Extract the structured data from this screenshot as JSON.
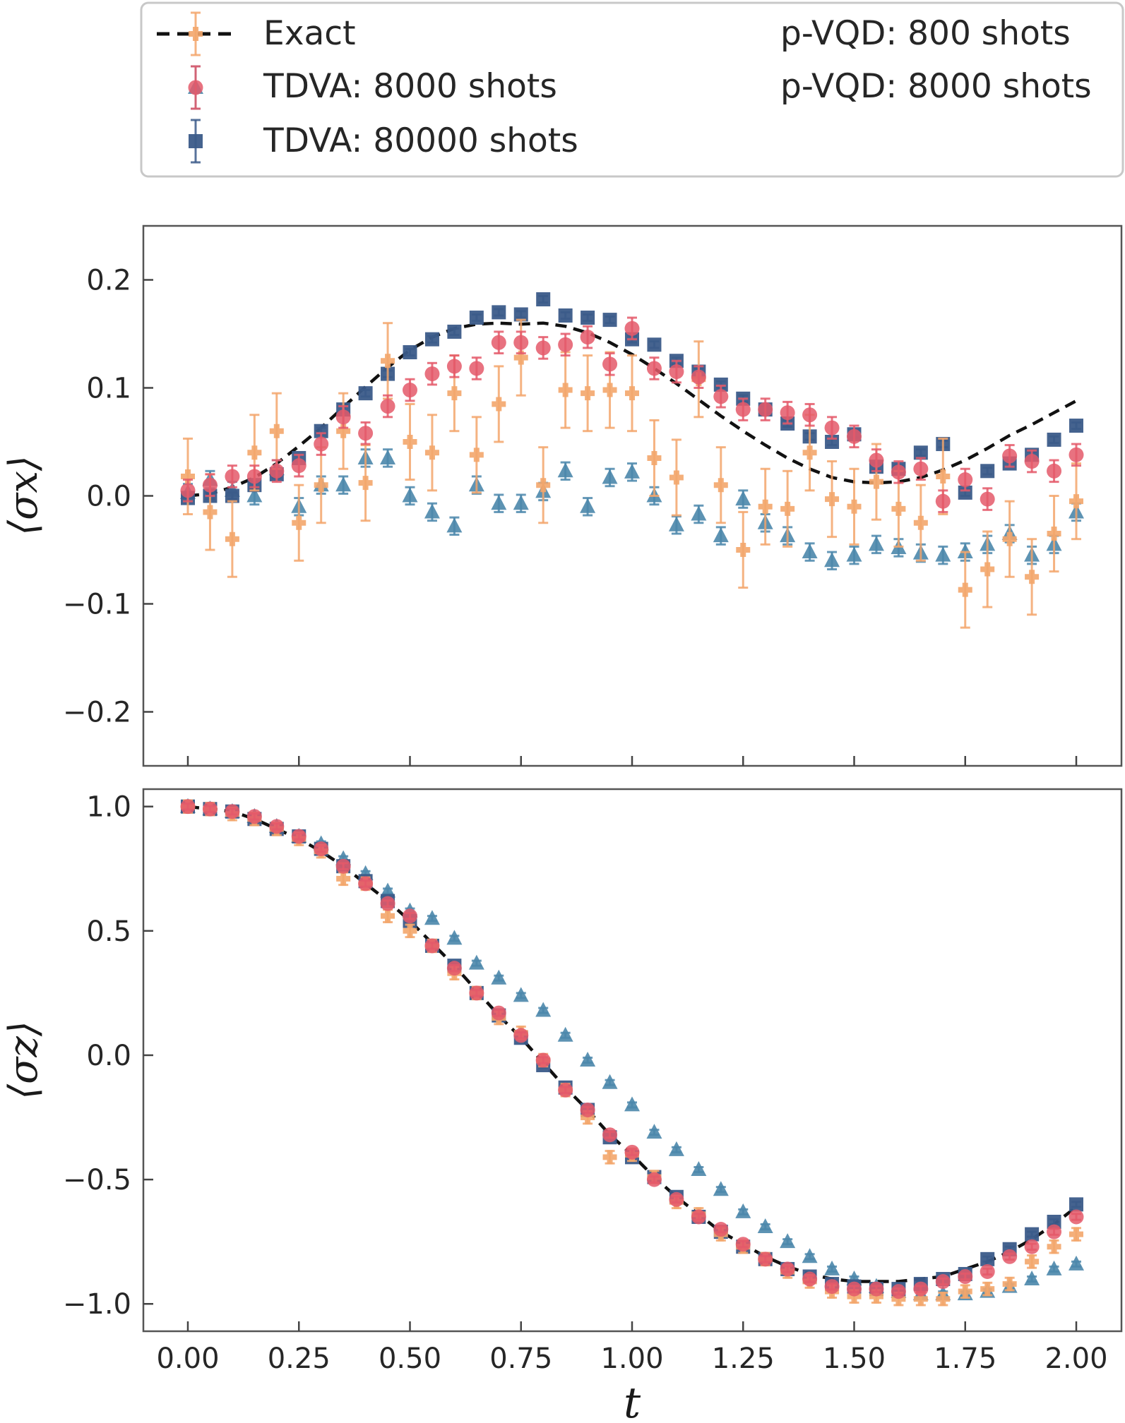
{
  "colors": {
    "exact": "#111111",
    "tdva_8000": "#4b87ab",
    "tdva_80000": "#3b5b89",
    "pvqd_800": "#f3a66c",
    "pvqd_8000": "#e4596a",
    "frame": "#555555",
    "legend_border": "#c8c8c8"
  },
  "chart_data": [
    {
      "type": "scatter",
      "panel": "top",
      "ylabel": "⟨σx⟩",
      "xlim": [
        -0.1,
        2.09
      ],
      "ylim": [
        -0.25,
        0.25
      ],
      "xticks": [
        0.0,
        0.25,
        0.5,
        0.75,
        1.0,
        1.25,
        1.5,
        1.75,
        2.0
      ],
      "yticks": [
        -0.2,
        -0.1,
        0.0,
        0.1,
        0.2
      ],
      "ytick_labels": [
        "−0.2",
        "−0.1",
        "0.0",
        "0.1",
        "0.2"
      ],
      "grid": false,
      "t": [
        0.0,
        0.05,
        0.1,
        0.15,
        0.2,
        0.25,
        0.3,
        0.35,
        0.4,
        0.45,
        0.5,
        0.55,
        0.6,
        0.65,
        0.7,
        0.75,
        0.8,
        0.85,
        0.9,
        0.95,
        1.0,
        1.05,
        1.1,
        1.15,
        1.2,
        1.25,
        1.3,
        1.35,
        1.4,
        1.45,
        1.5,
        1.55,
        1.6,
        1.65,
        1.7,
        1.75,
        1.8,
        1.85,
        1.9,
        1.95,
        2.0
      ],
      "series": [
        {
          "name": "Exact",
          "kind": "line",
          "key": "exact",
          "values": [
            0.0,
            0.002,
            0.008,
            0.017,
            0.03,
            0.046,
            0.063,
            0.082,
            0.101,
            0.119,
            0.135,
            0.147,
            0.155,
            0.159,
            0.16,
            0.159,
            0.16,
            0.157,
            0.151,
            0.142,
            0.131,
            0.118,
            0.104,
            0.089,
            0.074,
            0.06,
            0.047,
            0.035,
            0.025,
            0.017,
            0.013,
            0.012,
            0.013,
            0.017,
            0.024,
            0.033,
            0.044,
            0.056,
            0.066,
            0.077,
            0.088
          ]
        },
        {
          "name": "TDVA: 8000 shots",
          "kind": "marker",
          "marker": "triangle",
          "key": "tdva_8000",
          "values": [
            0.003,
            0.015,
            0.005,
            0.0,
            0.025,
            -0.01,
            0.01,
            0.01,
            0.035,
            0.035,
            0.0,
            -0.015,
            -0.028,
            0.01,
            -0.007,
            -0.007,
            0.004,
            0.023,
            -0.01,
            0.017,
            0.022,
            0.0,
            -0.027,
            -0.017,
            -0.037,
            -0.003,
            -0.025,
            -0.037,
            -0.052,
            -0.06,
            -0.055,
            -0.045,
            -0.048,
            -0.053,
            -0.055,
            -0.052,
            -0.045,
            -0.035,
            -0.055,
            -0.045,
            -0.015
          ],
          "err": 0.008
        },
        {
          "name": "TDVA: 80000 shots",
          "kind": "marker",
          "marker": "square",
          "key": "tdva_80000",
          "values": [
            -0.002,
            0.0,
            0.0,
            0.01,
            0.02,
            0.035,
            0.06,
            0.08,
            0.095,
            0.113,
            0.133,
            0.145,
            0.152,
            0.165,
            0.17,
            0.168,
            0.182,
            0.167,
            0.165,
            0.163,
            0.145,
            0.14,
            0.125,
            0.115,
            0.103,
            0.09,
            0.08,
            0.067,
            0.055,
            0.05,
            0.057,
            0.027,
            0.025,
            0.04,
            0.048,
            0.003,
            0.023,
            0.03,
            0.038,
            0.052,
            0.065
          ],
          "err": 0.003
        },
        {
          "name": "p-VQD: 800 shots",
          "kind": "marker",
          "marker": "plus",
          "key": "pvqd_800",
          "values": [
            0.018,
            -0.015,
            -0.04,
            0.04,
            0.06,
            -0.025,
            0.01,
            0.06,
            0.012,
            0.125,
            0.05,
            0.04,
            0.095,
            0.038,
            0.085,
            0.128,
            0.01,
            0.098,
            0.095,
            0.098,
            0.095,
            0.035,
            0.017,
            0.108,
            0.01,
            -0.05,
            -0.01,
            -0.012,
            0.04,
            -0.003,
            -0.01,
            0.013,
            -0.012,
            -0.025,
            0.018,
            -0.087,
            -0.068,
            -0.04,
            -0.075,
            -0.035,
            -0.005
          ],
          "err": 0.035
        },
        {
          "name": "p-VQD: 8000 shots",
          "kind": "marker",
          "marker": "circle",
          "key": "pvqd_8000",
          "values": [
            0.005,
            0.01,
            0.018,
            0.018,
            0.023,
            0.028,
            0.048,
            0.073,
            0.058,
            0.083,
            0.098,
            0.113,
            0.12,
            0.118,
            0.142,
            0.142,
            0.137,
            0.14,
            0.147,
            0.122,
            0.155,
            0.118,
            0.115,
            0.11,
            0.092,
            0.08,
            0.08,
            0.077,
            0.075,
            0.063,
            0.055,
            0.033,
            0.022,
            0.025,
            -0.005,
            0.015,
            -0.003,
            0.037,
            0.032,
            0.023,
            0.038
          ],
          "err": 0.01
        }
      ]
    },
    {
      "type": "scatter",
      "panel": "bottom",
      "xlabel": "t",
      "ylabel": "⟨σz⟩",
      "xlim": [
        -0.1,
        2.09
      ],
      "ylim": [
        -1.11,
        1.07
      ],
      "xticks": [
        0.0,
        0.25,
        0.5,
        0.75,
        1.0,
        1.25,
        1.5,
        1.75,
        2.0
      ],
      "xtick_labels": [
        "0.00",
        "0.25",
        "0.50",
        "0.75",
        "1.00",
        "1.25",
        "1.50",
        "1.75",
        "2.00"
      ],
      "yticks": [
        -1.0,
        -0.5,
        0.0,
        0.5,
        1.0
      ],
      "ytick_labels": [
        "−1.0",
        "−0.5",
        "0.0",
        "0.5",
        "1.0"
      ],
      "grid": false,
      "t": [
        0.0,
        0.05,
        0.1,
        0.15,
        0.2,
        0.25,
        0.3,
        0.35,
        0.4,
        0.45,
        0.5,
        0.55,
        0.6,
        0.65,
        0.7,
        0.75,
        0.8,
        0.85,
        0.9,
        0.95,
        1.0,
        1.05,
        1.1,
        1.15,
        1.2,
        1.25,
        1.3,
        1.35,
        1.4,
        1.45,
        1.5,
        1.55,
        1.6,
        1.65,
        1.7,
        1.75,
        1.8,
        1.85,
        1.9,
        1.95,
        2.0
      ],
      "series": [
        {
          "name": "Exact",
          "kind": "line",
          "key": "exact",
          "values": [
            1.0,
            0.99,
            0.98,
            0.95,
            0.91,
            0.87,
            0.82,
            0.76,
            0.69,
            0.62,
            0.54,
            0.45,
            0.36,
            0.26,
            0.16,
            0.07,
            -0.03,
            -0.13,
            -0.22,
            -0.32,
            -0.4,
            -0.49,
            -0.57,
            -0.64,
            -0.71,
            -0.76,
            -0.81,
            -0.85,
            -0.88,
            -0.9,
            -0.91,
            -0.91,
            -0.91,
            -0.9,
            -0.89,
            -0.86,
            -0.83,
            -0.79,
            -0.74,
            -0.68,
            -0.61
          ]
        },
        {
          "name": "TDVA: 8000 shots",
          "kind": "marker",
          "marker": "triangle",
          "key": "tdva_8000",
          "values": [
            1.0,
            0.99,
            0.98,
            0.96,
            0.92,
            0.88,
            0.85,
            0.79,
            0.73,
            0.66,
            0.58,
            0.55,
            0.47,
            0.37,
            0.31,
            0.24,
            0.18,
            0.08,
            -0.02,
            -0.11,
            -0.2,
            -0.31,
            -0.38,
            -0.46,
            -0.54,
            -0.63,
            -0.69,
            -0.75,
            -0.81,
            -0.86,
            -0.9,
            -0.93,
            -0.95,
            -0.96,
            -0.96,
            -0.96,
            -0.95,
            -0.93,
            -0.9,
            -0.86,
            -0.84
          ],
          "err": 0.01
        },
        {
          "name": "TDVA: 80000 shots",
          "kind": "marker",
          "marker": "square",
          "key": "tdva_80000",
          "values": [
            1.0,
            0.99,
            0.98,
            0.95,
            0.91,
            0.88,
            0.83,
            0.76,
            0.7,
            0.62,
            0.54,
            0.44,
            0.36,
            0.25,
            0.16,
            0.07,
            -0.04,
            -0.13,
            -0.22,
            -0.33,
            -0.41,
            -0.49,
            -0.57,
            -0.65,
            -0.71,
            -0.77,
            -0.82,
            -0.86,
            -0.89,
            -0.92,
            -0.93,
            -0.94,
            -0.94,
            -0.92,
            -0.9,
            -0.88,
            -0.82,
            -0.78,
            -0.72,
            -0.67,
            -0.6
          ],
          "err": 0.01
        },
        {
          "name": "p-VQD: 800 shots",
          "kind": "marker",
          "marker": "plus",
          "key": "pvqd_800",
          "values": [
            1.0,
            0.99,
            0.97,
            0.95,
            0.91,
            0.87,
            0.82,
            0.71,
            0.69,
            0.56,
            0.5,
            0.44,
            0.33,
            0.25,
            0.15,
            0.09,
            -0.02,
            -0.14,
            -0.25,
            -0.41,
            -0.4,
            -0.49,
            -0.59,
            -0.64,
            -0.72,
            -0.77,
            -0.82,
            -0.87,
            -0.91,
            -0.95,
            -0.97,
            -0.97,
            -0.98,
            -0.98,
            -0.98,
            -0.95,
            -0.94,
            -0.92,
            -0.83,
            -0.77,
            -0.72
          ],
          "err": 0.025
        },
        {
          "name": "p-VQD: 8000 shots",
          "kind": "marker",
          "marker": "circle",
          "key": "pvqd_8000",
          "values": [
            1.0,
            0.99,
            0.98,
            0.96,
            0.92,
            0.88,
            0.83,
            0.76,
            0.69,
            0.61,
            0.56,
            0.44,
            0.35,
            0.25,
            0.17,
            0.08,
            -0.02,
            -0.14,
            -0.22,
            -0.32,
            -0.39,
            -0.5,
            -0.58,
            -0.65,
            -0.7,
            -0.76,
            -0.82,
            -0.86,
            -0.9,
            -0.93,
            -0.94,
            -0.94,
            -0.95,
            -0.94,
            -0.91,
            -0.89,
            -0.87,
            -0.81,
            -0.77,
            -0.71,
            -0.65
          ],
          "err": 0.012
        }
      ]
    }
  ],
  "legend": {
    "placement": "top",
    "entries": [
      {
        "key": "exact",
        "label": "Exact"
      },
      {
        "key": "tdva_8000",
        "label": "TDVA: 8000 shots"
      },
      {
        "key": "tdva_80000",
        "label": "TDVA: 80000 shots"
      },
      {
        "key": "pvqd_800",
        "label": "p-VQD: 800 shots"
      },
      {
        "key": "pvqd_8000",
        "label": "p-VQD: 8000 shots"
      }
    ]
  }
}
